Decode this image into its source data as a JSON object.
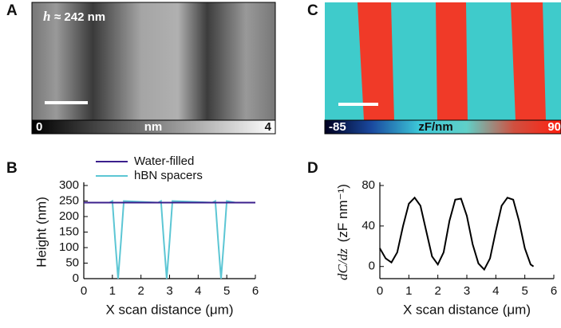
{
  "figure": {
    "panel_a": {
      "label": "A",
      "annotation_symbol": "h",
      "annotation_value": "≈ 242 nm",
      "colorbar_min": "0",
      "colorbar_unit": "nm",
      "colorbar_max": "4"
    },
    "panel_c": {
      "label": "C",
      "colorbar_min": "-85",
      "colorbar_unit": "zF/nm",
      "colorbar_max": "90"
    }
  },
  "chart_data": [
    {
      "type": "line",
      "label": "B",
      "xlabel": "X scan distance (μm)",
      "ylabel": "Height (nm)",
      "xlim": [
        0,
        6
      ],
      "xticks": [
        0,
        1,
        2,
        3,
        4,
        5,
        6
      ],
      "ylim": [
        0,
        300
      ],
      "yticks": [
        0,
        50,
        100,
        150,
        200,
        250,
        300
      ],
      "series": [
        {
          "name": "Water-filled",
          "color": "#3b1f8c",
          "x": [
            0,
            6
          ],
          "values": [
            245,
            245
          ]
        },
        {
          "name": "hBN spacers",
          "color": "#5cc6d4",
          "x": [
            0.05,
            0.9,
            1.0,
            1.1,
            1.2,
            1.3,
            1.4,
            2.6,
            2.7,
            2.8,
            2.9,
            3.0,
            3.1,
            4.5,
            4.6,
            4.7,
            4.8,
            4.9,
            5.0,
            5.3
          ],
          "values": [
            245,
            245,
            250,
            120,
            0,
            120,
            250,
            245,
            250,
            120,
            0,
            120,
            250,
            245,
            250,
            120,
            0,
            120,
            250,
            245
          ]
        }
      ]
    },
    {
      "type": "line",
      "label": "D",
      "xlabel": "X scan distance (μm)",
      "ylabel_symbol": "dC/dz",
      "ylabel_unit": "(zF nm⁻¹)",
      "xlim": [
        0,
        6
      ],
      "xticks": [
        0,
        1,
        2,
        3,
        4,
        5,
        6
      ],
      "ylim": [
        -12,
        80
      ],
      "yticks": [
        0,
        40,
        80
      ],
      "series": [
        {
          "color": "#000000",
          "x": [
            0,
            0.2,
            0.4,
            0.6,
            0.8,
            1.0,
            1.2,
            1.4,
            1.6,
            1.8,
            2.0,
            2.2,
            2.4,
            2.6,
            2.8,
            3.0,
            3.2,
            3.4,
            3.6,
            3.8,
            4.0,
            4.2,
            4.4,
            4.6,
            4.8,
            5.0,
            5.2,
            5.3
          ],
          "values": [
            18,
            8,
            4,
            14,
            40,
            62,
            68,
            60,
            35,
            10,
            2,
            14,
            45,
            66,
            67,
            50,
            22,
            3,
            -3,
            8,
            35,
            60,
            68,
            66,
            45,
            18,
            2,
            0
          ]
        }
      ]
    }
  ]
}
